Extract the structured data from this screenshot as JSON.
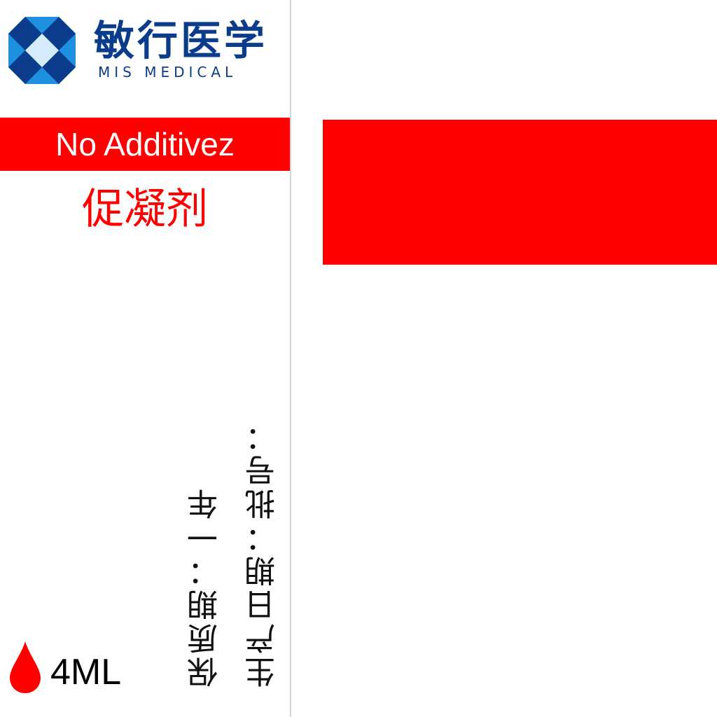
{
  "brand": {
    "name_cn": "敏行医学",
    "name_en": "MIS MEDICAL",
    "mark_colors": [
      "#0b3c8c",
      "#1f8fe0",
      "#d7ecfb"
    ]
  },
  "additive": {
    "name_en": "No Additivez",
    "name_cn": "促凝剂",
    "band_color": "#ff0000"
  },
  "info": {
    "shelf_life": "保质期：一年",
    "production_date": "生产日期：",
    "batch_no": "批号："
  },
  "volume": {
    "value": "4ML",
    "icon": "blood-drop-icon"
  },
  "cap_color": "#ff0000"
}
